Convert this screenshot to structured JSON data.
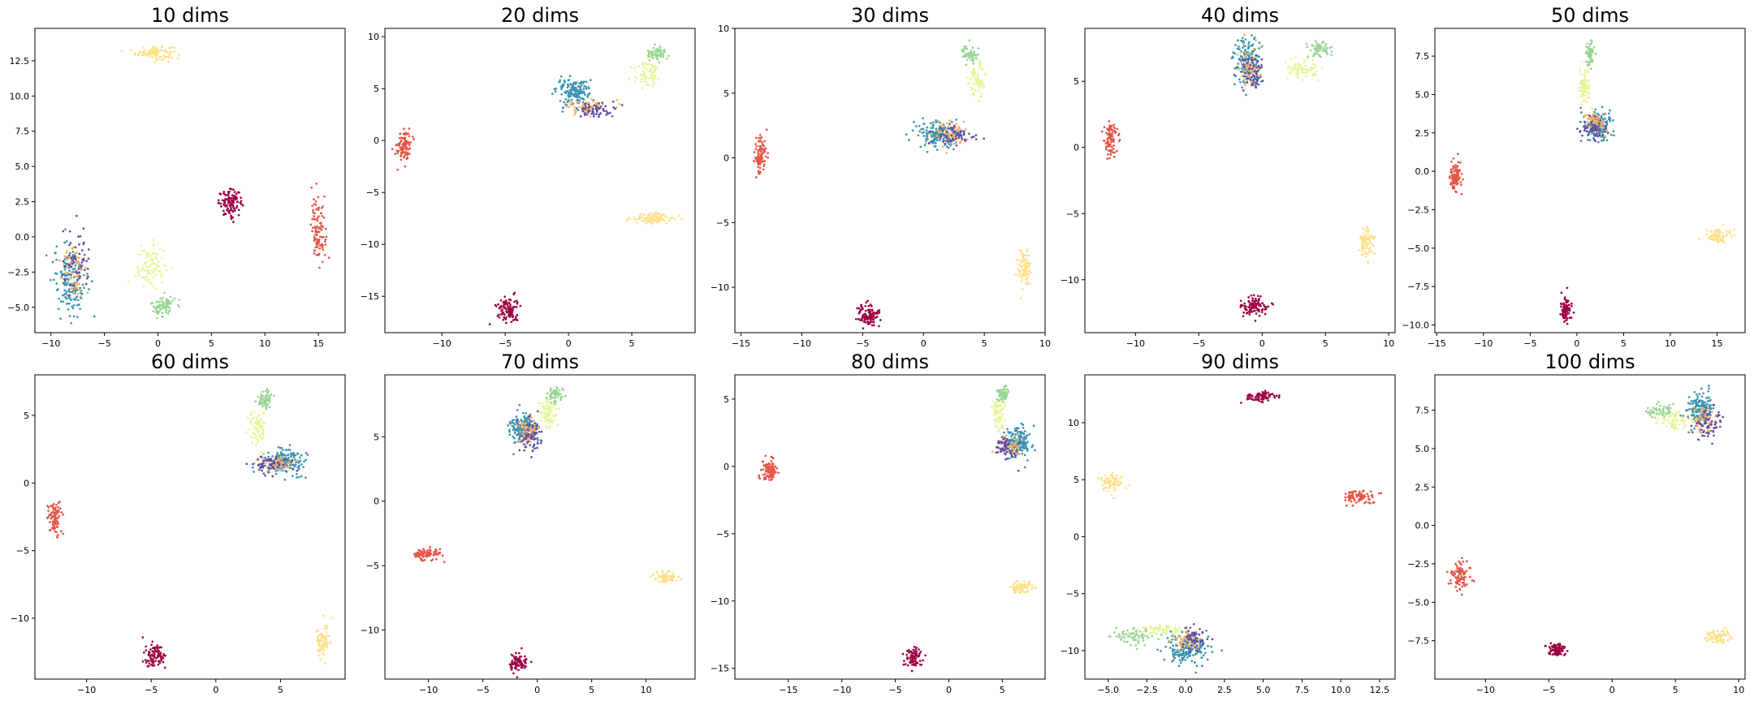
{
  "figure": {
    "palette": {
      "cluster_a": "#9e0142",
      "cluster_b": "#e45648",
      "cluster_c": "#fee08b",
      "cluster_d": "#e6f598",
      "cluster_e": "#99d594",
      "cluster_f": "#3b94b2",
      "cluster_g": "#fdae61",
      "cluster_h": "#5e4fa2"
    }
  },
  "chart_data": [
    {
      "type": "scatter",
      "title": "10 dims",
      "xlim": [
        -11.5,
        17.5
      ],
      "ylim": [
        -6.8,
        14.8
      ],
      "xticks": [
        -10,
        -5,
        0,
        5,
        10,
        15
      ],
      "yticks": [
        -5.0,
        -2.5,
        0.0,
        2.5,
        5.0,
        7.5,
        10.0,
        12.5
      ],
      "tick_decimals": 1,
      "clusters": [
        {
          "color": "cluster_c",
          "cx": -0.3,
          "cy": 13.1,
          "rx": 1.6,
          "ry": 0.45,
          "n": 110
        },
        {
          "color": "cluster_a",
          "cx": 6.8,
          "cy": 2.4,
          "rx": 1.0,
          "ry": 0.8,
          "n": 110
        },
        {
          "color": "cluster_b",
          "cx": 15.0,
          "cy": 0.5,
          "rx": 0.6,
          "ry": 2.0,
          "n": 110
        },
        {
          "color": "cluster_d",
          "cx": -0.7,
          "cy": -2.2,
          "rx": 1.3,
          "ry": 1.4,
          "n": 90
        },
        {
          "color": "cluster_e",
          "cx": 0.5,
          "cy": -4.9,
          "rx": 1.0,
          "ry": 0.7,
          "n": 80
        },
        {
          "color": "cluster_f",
          "cx": -8.2,
          "cy": -3.0,
          "rx": 1.4,
          "ry": 2.3,
          "n": 160
        },
        {
          "color": "cluster_g",
          "cx": -7.8,
          "cy": -2.5,
          "rx": 1.2,
          "ry": 2.0,
          "n": 60
        },
        {
          "color": "cluster_h",
          "cx": -7.6,
          "cy": -2.0,
          "rx": 1.3,
          "ry": 2.0,
          "n": 60
        }
      ]
    },
    {
      "type": "scatter",
      "title": "20 dims",
      "xlim": [
        -14.5,
        10
      ],
      "ylim": [
        -18.5,
        10.8
      ],
      "xticks": [
        -10,
        -5,
        0,
        5
      ],
      "yticks": [
        -15,
        -10,
        -5,
        0,
        5,
        10
      ],
      "tick_decimals": 0,
      "clusters": [
        {
          "color": "cluster_b",
          "cx": -13.0,
          "cy": -0.5,
          "rx": 0.5,
          "ry": 1.4,
          "n": 100
        },
        {
          "color": "cluster_a",
          "cx": -4.8,
          "cy": -16.3,
          "rx": 0.8,
          "ry": 1.1,
          "n": 110
        },
        {
          "color": "cluster_c",
          "cx": 6.6,
          "cy": -7.5,
          "rx": 1.6,
          "ry": 0.5,
          "n": 100
        },
        {
          "color": "cluster_d",
          "cx": 6.3,
          "cy": 6.5,
          "rx": 0.9,
          "ry": 1.1,
          "n": 70
        },
        {
          "color": "cluster_e",
          "cx": 7.0,
          "cy": 8.4,
          "rx": 0.7,
          "ry": 0.5,
          "n": 60
        },
        {
          "color": "cluster_f",
          "cx": 0.3,
          "cy": 4.7,
          "rx": 1.2,
          "ry": 1.1,
          "n": 160
        },
        {
          "color": "cluster_g",
          "cx": 1.6,
          "cy": 3.2,
          "rx": 1.5,
          "ry": 0.6,
          "n": 70
        },
        {
          "color": "cluster_h",
          "cx": 1.9,
          "cy": 3.0,
          "rx": 1.7,
          "ry": 0.6,
          "n": 60
        }
      ]
    },
    {
      "type": "scatter",
      "title": "30 dims",
      "xlim": [
        -15.5,
        10
      ],
      "ylim": [
        -13.5,
        10
      ],
      "xticks": [
        -15,
        -10,
        -5,
        0,
        5,
        10
      ],
      "yticks": [
        -10,
        -5,
        0,
        5,
        10
      ],
      "tick_decimals": 0,
      "clusters": [
        {
          "color": "cluster_b",
          "cx": -13.4,
          "cy": 0.2,
          "rx": 0.5,
          "ry": 1.4,
          "n": 100
        },
        {
          "color": "cluster_a",
          "cx": -4.5,
          "cy": -12.2,
          "rx": 0.8,
          "ry": 0.8,
          "n": 100
        },
        {
          "color": "cluster_c",
          "cx": 8.3,
          "cy": -8.5,
          "rx": 0.5,
          "ry": 1.3,
          "n": 90
        },
        {
          "color": "cluster_d",
          "cx": 4.4,
          "cy": 6.0,
          "rx": 0.6,
          "ry": 1.4,
          "n": 70
        },
        {
          "color": "cluster_e",
          "cx": 3.8,
          "cy": 8.0,
          "rx": 0.6,
          "ry": 0.6,
          "n": 60
        },
        {
          "color": "cluster_f",
          "cx": 1.1,
          "cy": 1.8,
          "rx": 1.6,
          "ry": 0.9,
          "n": 170
        },
        {
          "color": "cluster_g",
          "cx": 2.0,
          "cy": 1.9,
          "rx": 1.4,
          "ry": 0.8,
          "n": 70
        },
        {
          "color": "cluster_h",
          "cx": 2.5,
          "cy": 1.7,
          "rx": 1.6,
          "ry": 0.6,
          "n": 60
        }
      ]
    },
    {
      "type": "scatter",
      "title": "40 dims",
      "xlim": [
        -14,
        10.5
      ],
      "ylim": [
        -14,
        9
      ],
      "xticks": [
        -10,
        -5,
        0,
        5,
        10
      ],
      "yticks": [
        -10,
        -5,
        0,
        5
      ],
      "tick_decimals": 0,
      "clusters": [
        {
          "color": "cluster_b",
          "cx": -12.0,
          "cy": 0.5,
          "rx": 0.5,
          "ry": 1.3,
          "n": 90
        },
        {
          "color": "cluster_a",
          "cx": -0.6,
          "cy": -12.0,
          "rx": 1.0,
          "ry": 0.6,
          "n": 100
        },
        {
          "color": "cluster_c",
          "cx": 8.2,
          "cy": -7.2,
          "rx": 0.5,
          "ry": 1.2,
          "n": 80
        },
        {
          "color": "cluster_d",
          "cx": 3.2,
          "cy": 5.9,
          "rx": 1.2,
          "ry": 0.8,
          "n": 70
        },
        {
          "color": "cluster_e",
          "cx": 4.6,
          "cy": 7.4,
          "rx": 0.8,
          "ry": 0.5,
          "n": 60
        },
        {
          "color": "cluster_f",
          "cx": -1.2,
          "cy": 6.5,
          "rx": 0.9,
          "ry": 1.7,
          "n": 160
        },
        {
          "color": "cluster_g",
          "cx": -1.0,
          "cy": 5.9,
          "rx": 0.8,
          "ry": 1.5,
          "n": 70
        },
        {
          "color": "cluster_h",
          "cx": -0.8,
          "cy": 5.8,
          "rx": 0.8,
          "ry": 1.6,
          "n": 60
        }
      ]
    },
    {
      "type": "scatter",
      "title": "50 dims",
      "xlim": [
        -15.2,
        18
      ],
      "ylim": [
        -10.5,
        9.3
      ],
      "xticks": [
        -15,
        -10,
        -5,
        0,
        5,
        10,
        15
      ],
      "yticks": [
        -10.0,
        -7.5,
        -5.0,
        -2.5,
        0.0,
        2.5,
        5.0,
        7.5
      ],
      "tick_decimals": 1,
      "clusters": [
        {
          "color": "cluster_b",
          "cx": -13.0,
          "cy": -0.3,
          "rx": 0.5,
          "ry": 1.0,
          "n": 90
        },
        {
          "color": "cluster_a",
          "cx": -1.2,
          "cy": -9.0,
          "rx": 0.6,
          "ry": 0.8,
          "n": 90
        },
        {
          "color": "cluster_c",
          "cx": 15.0,
          "cy": -4.2,
          "rx": 1.2,
          "ry": 0.4,
          "n": 80
        },
        {
          "color": "cluster_d",
          "cx": 0.8,
          "cy": 5.5,
          "rx": 0.5,
          "ry": 1.2,
          "n": 70
        },
        {
          "color": "cluster_e",
          "cx": 1.4,
          "cy": 7.7,
          "rx": 0.4,
          "ry": 0.8,
          "n": 60
        },
        {
          "color": "cluster_f",
          "cx": 2.2,
          "cy": 3.0,
          "rx": 1.3,
          "ry": 0.8,
          "n": 160
        },
        {
          "color": "cluster_g",
          "cx": 1.9,
          "cy": 3.1,
          "rx": 1.1,
          "ry": 0.7,
          "n": 60
        },
        {
          "color": "cluster_h",
          "cx": 1.6,
          "cy": 2.8,
          "rx": 1.2,
          "ry": 0.6,
          "n": 60
        }
      ]
    },
    {
      "type": "scatter",
      "title": "60 dims",
      "xlim": [
        -14,
        10
      ],
      "ylim": [
        -14.5,
        8
      ],
      "xticks": [
        -10,
        -5,
        0,
        5
      ],
      "yticks": [
        -10,
        -5,
        0,
        5
      ],
      "tick_decimals": 0,
      "clusters": [
        {
          "color": "cluster_b",
          "cx": -12.5,
          "cy": -2.5,
          "rx": 0.5,
          "ry": 1.2,
          "n": 90
        },
        {
          "color": "cluster_a",
          "cx": -4.8,
          "cy": -12.8,
          "rx": 0.7,
          "ry": 0.7,
          "n": 90
        },
        {
          "color": "cluster_c",
          "cx": 8.3,
          "cy": -11.5,
          "rx": 0.5,
          "ry": 1.1,
          "n": 80
        },
        {
          "color": "cluster_d",
          "cx": 3.2,
          "cy": 4.2,
          "rx": 0.6,
          "ry": 1.3,
          "n": 70
        },
        {
          "color": "cluster_e",
          "cx": 3.8,
          "cy": 6.2,
          "rx": 0.5,
          "ry": 0.6,
          "n": 60
        },
        {
          "color": "cluster_f",
          "cx": 5.4,
          "cy": 1.6,
          "rx": 1.3,
          "ry": 0.9,
          "n": 160
        },
        {
          "color": "cluster_g",
          "cx": 4.5,
          "cy": 1.5,
          "rx": 1.2,
          "ry": 0.6,
          "n": 60
        },
        {
          "color": "cluster_h",
          "cx": 4.0,
          "cy": 1.4,
          "rx": 1.3,
          "ry": 0.6,
          "n": 60
        }
      ]
    },
    {
      "type": "scatter",
      "title": "70 dims",
      "xlim": [
        -14,
        14.5
      ],
      "ylim": [
        -13.8,
        9.8
      ],
      "xticks": [
        -10,
        -5,
        0,
        5,
        10
      ],
      "yticks": [
        -10,
        -5,
        0,
        5
      ],
      "tick_decimals": 0,
      "clusters": [
        {
          "color": "cluster_b",
          "cx": -10.2,
          "cy": -4.1,
          "rx": 1.2,
          "ry": 0.4,
          "n": 90
        },
        {
          "color": "cluster_a",
          "cx": -1.8,
          "cy": -12.5,
          "rx": 0.7,
          "ry": 0.5,
          "n": 80
        },
        {
          "color": "cluster_c",
          "cx": 11.8,
          "cy": -5.9,
          "rx": 1.0,
          "ry": 0.4,
          "n": 80
        },
        {
          "color": "cluster_d",
          "cx": 1.1,
          "cy": 6.8,
          "rx": 0.7,
          "ry": 1.0,
          "n": 70
        },
        {
          "color": "cluster_e",
          "cx": 1.6,
          "cy": 8.3,
          "rx": 0.6,
          "ry": 0.5,
          "n": 60
        },
        {
          "color": "cluster_f",
          "cx": -1.3,
          "cy": 5.6,
          "rx": 1.1,
          "ry": 1.1,
          "n": 160
        },
        {
          "color": "cluster_g",
          "cx": -0.9,
          "cy": 5.3,
          "rx": 0.8,
          "ry": 1.0,
          "n": 60
        },
        {
          "color": "cluster_h",
          "cx": -0.6,
          "cy": 5.1,
          "rx": 0.9,
          "ry": 1.1,
          "n": 60
        }
      ]
    },
    {
      "type": "scatter",
      "title": "80 dims",
      "xlim": [
        -20,
        9
      ],
      "ylim": [
        -15.8,
        6.8
      ],
      "xticks": [
        -15,
        -10,
        -5,
        0,
        5
      ],
      "yticks": [
        -15,
        -10,
        -5,
        0,
        5
      ],
      "tick_decimals": 0,
      "clusters": [
        {
          "color": "cluster_b",
          "cx": -16.7,
          "cy": -0.3,
          "rx": 0.7,
          "ry": 0.8,
          "n": 90
        },
        {
          "color": "cluster_a",
          "cx": -3.3,
          "cy": -14.2,
          "rx": 0.7,
          "ry": 0.6,
          "n": 80
        },
        {
          "color": "cluster_c",
          "cx": 6.8,
          "cy": -9.0,
          "rx": 0.9,
          "ry": 0.4,
          "n": 80
        },
        {
          "color": "cluster_d",
          "cx": 4.6,
          "cy": 3.9,
          "rx": 0.6,
          "ry": 1.2,
          "n": 70
        },
        {
          "color": "cluster_e",
          "cx": 5.1,
          "cy": 5.4,
          "rx": 0.5,
          "ry": 0.5,
          "n": 60
        },
        {
          "color": "cluster_f",
          "cx": 6.5,
          "cy": 1.9,
          "rx": 1.1,
          "ry": 1.1,
          "n": 160
        },
        {
          "color": "cluster_g",
          "cx": 5.7,
          "cy": 1.6,
          "rx": 0.9,
          "ry": 0.8,
          "n": 60
        },
        {
          "color": "cluster_h",
          "cx": 5.3,
          "cy": 1.4,
          "rx": 0.9,
          "ry": 0.9,
          "n": 60
        }
      ]
    },
    {
      "type": "scatter",
      "title": "90 dims",
      "xlim": [
        -6.5,
        13.5
      ],
      "ylim": [
        -12.5,
        14.2
      ],
      "xticks": [
        -5.0,
        -2.5,
        0.0,
        2.5,
        5.0,
        7.5,
        10.0,
        12.5
      ],
      "yticks": [
        -10,
        -5,
        0,
        5,
        10
      ],
      "tick_decimals": 1,
      "clusters": [
        {
          "color": "cluster_a",
          "cx": 4.8,
          "cy": 12.3,
          "rx": 0.8,
          "ry": 0.5,
          "n": 80
        },
        {
          "color": "cluster_c",
          "cx": -4.8,
          "cy": 4.7,
          "rx": 0.6,
          "ry": 0.8,
          "n": 80
        },
        {
          "color": "cluster_b",
          "cx": 11.2,
          "cy": 3.5,
          "rx": 0.9,
          "ry": 0.6,
          "n": 80
        },
        {
          "color": "cluster_e",
          "cx": -3.2,
          "cy": -8.7,
          "rx": 1.2,
          "ry": 0.6,
          "n": 70
        },
        {
          "color": "cluster_d",
          "cx": -1.5,
          "cy": -8.2,
          "rx": 1.3,
          "ry": 0.5,
          "n": 70
        },
        {
          "color": "cluster_f",
          "cx": 0.0,
          "cy": -9.9,
          "rx": 1.2,
          "ry": 1.2,
          "n": 160
        },
        {
          "color": "cluster_g",
          "cx": 0.2,
          "cy": -9.2,
          "rx": 0.8,
          "ry": 0.9,
          "n": 60
        },
        {
          "color": "cluster_h",
          "cx": 0.5,
          "cy": -8.9,
          "rx": 0.8,
          "ry": 1.0,
          "n": 60
        }
      ]
    },
    {
      "type": "scatter",
      "title": "100 dims",
      "xlim": [
        -14,
        10.5
      ],
      "ylim": [
        -10,
        9.8
      ],
      "xticks": [
        -10,
        -5,
        0,
        5,
        10
      ],
      "yticks": [
        -7.5,
        -5.0,
        -2.5,
        0.0,
        2.5,
        5.0,
        7.5
      ],
      "tick_decimals": 1,
      "clusters": [
        {
          "color": "cluster_b",
          "cx": -12.0,
          "cy": -3.3,
          "rx": 0.6,
          "ry": 0.8,
          "n": 90
        },
        {
          "color": "cluster_a",
          "cx": -4.3,
          "cy": -8.1,
          "rx": 0.7,
          "ry": 0.4,
          "n": 80
        },
        {
          "color": "cluster_c",
          "cx": 8.3,
          "cy": -7.3,
          "rx": 1.0,
          "ry": 0.4,
          "n": 80
        },
        {
          "color": "cluster_e",
          "cx": 3.8,
          "cy": 7.4,
          "rx": 0.9,
          "ry": 0.4,
          "n": 60
        },
        {
          "color": "cluster_d",
          "cx": 5.0,
          "cy": 6.8,
          "rx": 1.2,
          "ry": 0.6,
          "n": 70
        },
        {
          "color": "cluster_f",
          "cx": 7.0,
          "cy": 7.6,
          "rx": 1.0,
          "ry": 0.9,
          "n": 160
        },
        {
          "color": "cluster_g",
          "cx": 7.3,
          "cy": 6.9,
          "rx": 0.8,
          "ry": 0.9,
          "n": 60
        },
        {
          "color": "cluster_h",
          "cx": 7.6,
          "cy": 6.6,
          "rx": 0.8,
          "ry": 1.0,
          "n": 60
        }
      ]
    }
  ]
}
